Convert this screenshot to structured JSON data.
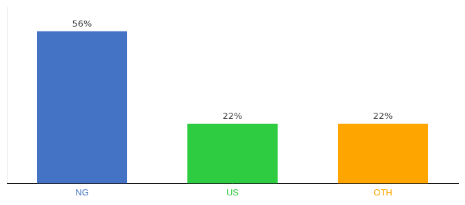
{
  "chart_data": {
    "type": "bar",
    "categories": [
      "NG",
      "US",
      "OTH"
    ],
    "values": [
      56,
      22,
      22
    ],
    "value_labels": [
      "56%",
      "22%",
      "22%"
    ],
    "colors": [
      "#4472C4",
      "#2ECC40",
      "#FFA500"
    ],
    "ylim": [
      0,
      65
    ],
    "grid": false,
    "data_labels": true,
    "tick_labels": "x"
  }
}
